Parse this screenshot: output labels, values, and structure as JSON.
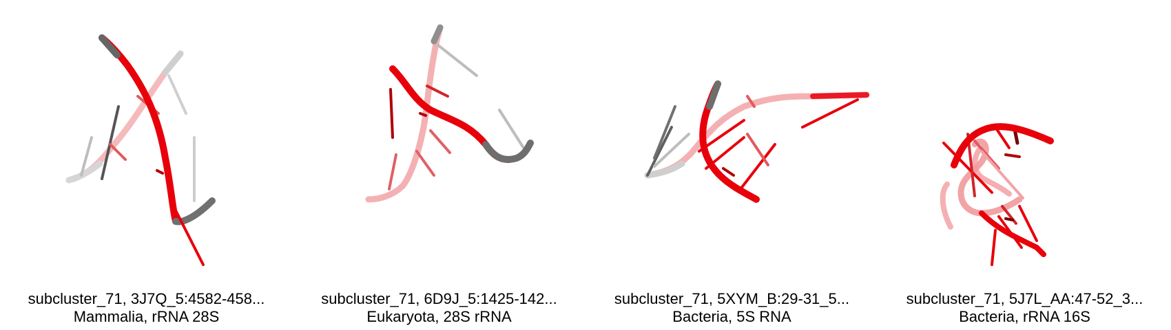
{
  "panels": [
    {
      "title": "subcluster_71, 3J7Q_5:4582-458...",
      "subtitle": "Mammalia, rRNA 28S"
    },
    {
      "title": "subcluster_71, 6D9J_5:1425-142...",
      "subtitle": "Eukaryota, 28S rRNA"
    },
    {
      "title": "subcluster_71, 5XYM_B:29-31_5...",
      "subtitle": "Bacteria, 5S RNA"
    },
    {
      "title": "subcluster_71, 5J7L_AA:47-52_3...",
      "subtitle": "Bacteria, rRNA 16S"
    }
  ],
  "colors": {
    "highlight": "#e8000a",
    "context": "#707070",
    "background": "#ffffff"
  }
}
